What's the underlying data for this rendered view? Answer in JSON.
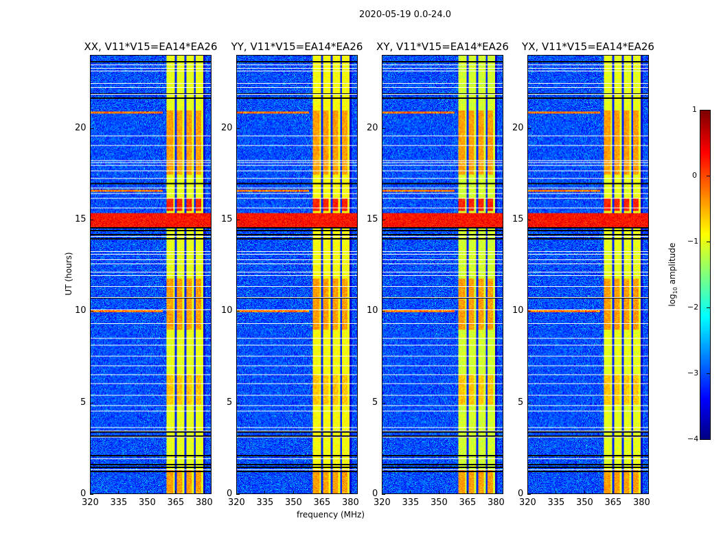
{
  "suptitle": "2020-05-19 0.0-24.0",
  "chart_data": {
    "type": "heatmap",
    "title": "2020-05-19 0.0-24.0",
    "xlabel": "frequency (MHz)",
    "ylabel": "UT (hours)",
    "xlim": [
      320,
      384
    ],
    "ylim": [
      0,
      24
    ],
    "xticks": [
      320,
      335,
      350,
      365,
      380
    ],
    "yticks": [
      0,
      5,
      10,
      15,
      20
    ],
    "panels": [
      {
        "title": "XX, V11*V15=EA14*EA26",
        "band_level": -1.0
      },
      {
        "title": "YY, V11*V15=EA14*EA26",
        "band_level": -0.9
      },
      {
        "title": "XY, V11*V15=EA14*EA26",
        "band_level": -1.1
      },
      {
        "title": "YX, V11*V15=EA14*EA26",
        "band_level": -1.0
      }
    ],
    "colorbar": {
      "label": "log10 amplitude",
      "label_main": "log",
      "label_sub": "10",
      "label_rest": " amplitude",
      "range": [
        -4,
        1
      ],
      "ticks": [
        "1",
        "0",
        "−1",
        "−2",
        "−3",
        "−4"
      ],
      "tick_values": [
        1,
        0,
        -1,
        -2,
        -3,
        -4
      ],
      "colormap": "jet"
    },
    "background_level": -3.0,
    "band_mhz": [
      360.3,
      380.0
    ],
    "band_gaps_mhz": [
      365.1,
      370.3,
      375.2
    ],
    "hot_time_intervals_hours": [
      [
        0.0,
        1.3,
        -0.4
      ],
      [
        9.0,
        11.8,
        -0.4
      ],
      [
        15.5,
        16.2,
        0.2
      ],
      [
        17.5,
        21.0,
        -0.4
      ],
      [
        4.9,
        6.5,
        -0.6
      ]
    ],
    "rfi_band_hours": [
      14.6,
      15.4
    ],
    "rfi_level": 0.3,
    "rfi_lines_hours": [
      10.0,
      20.9,
      16.6
    ],
    "flagged_rows_hours": [
      23.52,
      23.33,
      23.18,
      22.5,
      22.28,
      21.9,
      19.6,
      19.1,
      18.25,
      18.14,
      17.99,
      17.7,
      17.3,
      16.75,
      16.45,
      16.2,
      15.67,
      14.1,
      13.28,
      13.13,
      12.83,
      12.6,
      12.16,
      11.97,
      11.37,
      10.77,
      10.1,
      9.35,
      8.52,
      8.14,
      7.54,
      7.02,
      6.53,
      6.04,
      5.4,
      4.84,
      4.54,
      3.64,
      3.45,
      3.11,
      1.91,
      1.31
    ],
    "zero_rows_hours": [
      23.71,
      21.95,
      21.73,
      17.04,
      14.6,
      14.45,
      14.23,
      13.97,
      10.77,
      3.41,
      3.19,
      2.1,
      1.61,
      1.46,
      1.24
    ]
  }
}
